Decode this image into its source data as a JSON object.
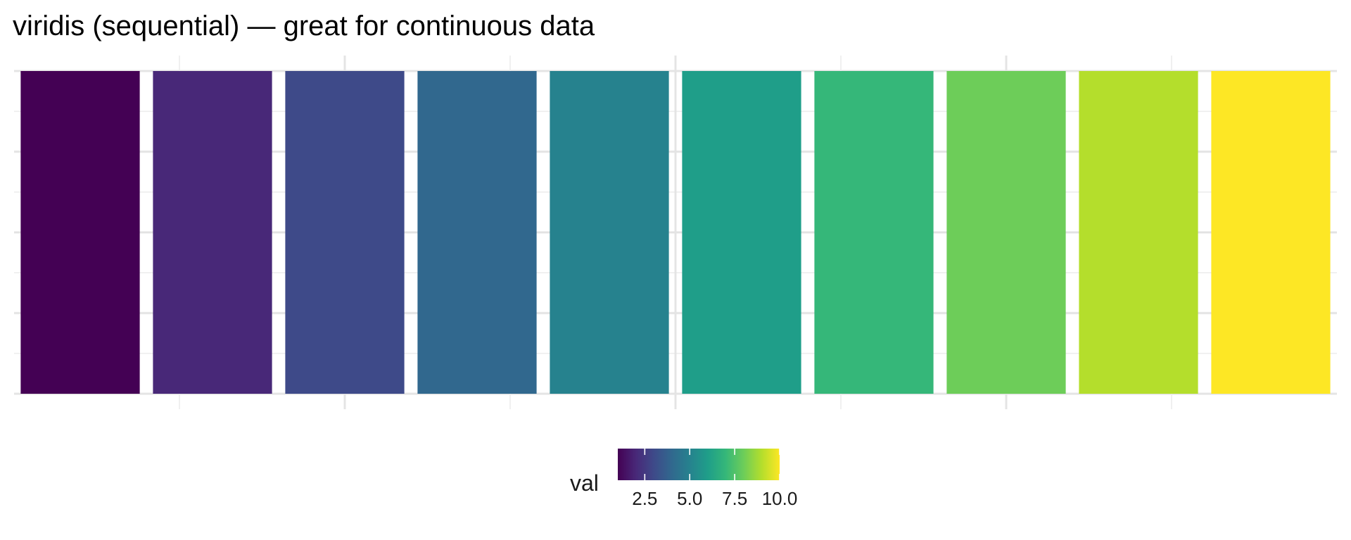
{
  "chart_data": {
    "type": "heatmap",
    "title": "viridis (sequential) — great for continuous data",
    "xlabel": "",
    "ylabel": "",
    "x": [
      1,
      2,
      3,
      4,
      5,
      6,
      7,
      8,
      9,
      10
    ],
    "values": [
      1,
      2,
      3,
      4,
      5,
      6,
      7,
      8,
      9,
      10
    ],
    "fill_colors": [
      "#440154",
      "#482878",
      "#3E4A89",
      "#31688E",
      "#26828E",
      "#1F9E89",
      "#35B779",
      "#6DCD59",
      "#B4DE2C",
      "#FDE725"
    ],
    "xlim": [
      0.5,
      10.5
    ],
    "grid": true,
    "axis_tick_labels": false,
    "legend": {
      "title": "val",
      "position": "bottom",
      "type": "colorbar",
      "palette": "viridis",
      "range": [
        1,
        10
      ],
      "breaks": [
        2.5,
        5.0,
        7.5,
        10.0
      ],
      "break_labels": [
        "2.5",
        "5.0",
        "7.5",
        "10.0"
      ],
      "colors": [
        "#440154",
        "#482878",
        "#3E4A89",
        "#31688E",
        "#26828E",
        "#1F9E89",
        "#35B779",
        "#6DCD59",
        "#B4DE2C",
        "#FDE725"
      ]
    }
  }
}
